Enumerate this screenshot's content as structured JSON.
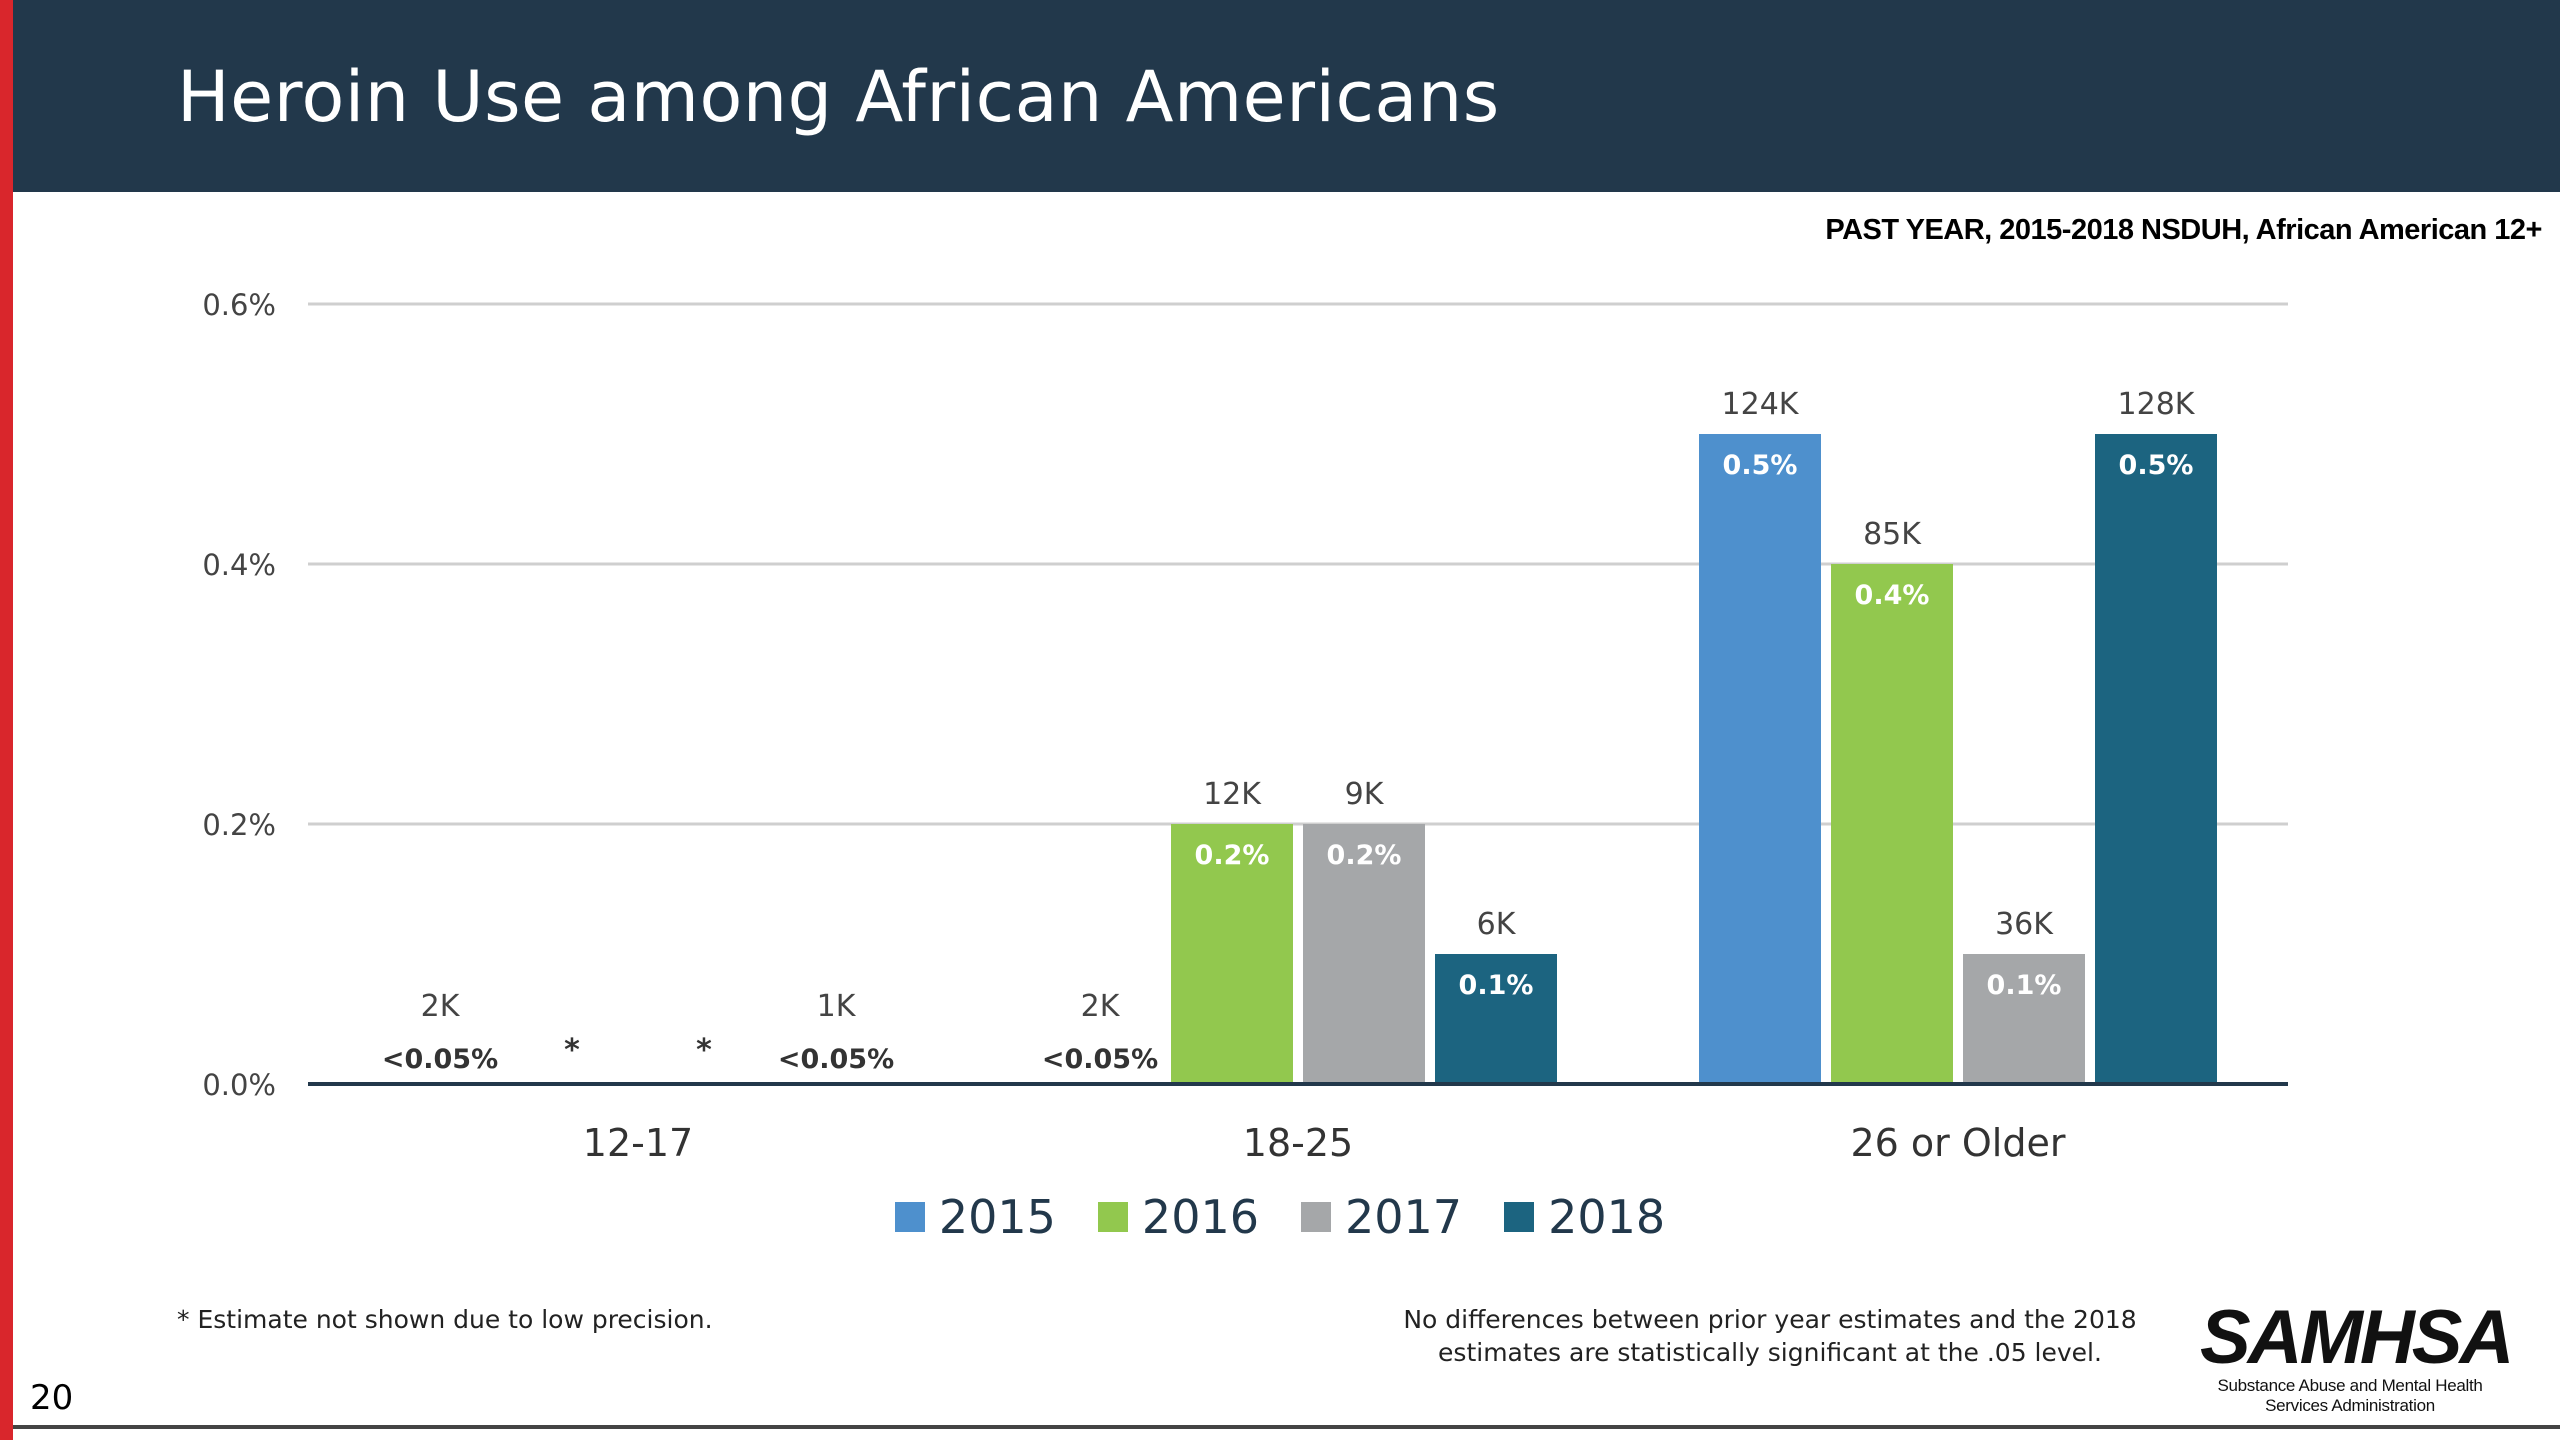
{
  "slide": {
    "title": "Heroin Use among African Americans",
    "subtitle": "PAST YEAR, 2015-2018 NSDUH, African American 12+",
    "footnote": "* Estimate not shown due to low precision.",
    "significance_line1": "No differences between prior year estimates and the 2018",
    "significance_line2": "estimates are statistically significant at the .05 level.",
    "page_number": "20",
    "logo_word": "SAMHSA",
    "logo_sub1": "Substance Abuse and Mental Health",
    "logo_sub2": "Services Administration"
  },
  "chart_data": {
    "type": "bar",
    "categories": [
      "12-17",
      "18-25",
      "26 or Older"
    ],
    "ylim": [
      0,
      0.6
    ],
    "yticks": [
      "0.0%",
      "0.2%",
      "0.4%",
      "0.6%"
    ],
    "ytick_values": [
      0,
      0.2,
      0.4,
      0.6
    ],
    "grid": true,
    "legend_position": "bottom-center",
    "series": [
      {
        "name": "2015",
        "color": "#4e90cd",
        "values": [
          0.03,
          null,
          0.5
        ],
        "inner_labels": [
          "<0.05%",
          "",
          "0.5%"
        ],
        "top_labels": [
          "2K",
          "",
          "124K"
        ],
        "suppressed": [
          false,
          false,
          false
        ]
      },
      {
        "name": "2016",
        "color": "#92c84e",
        "values": [
          null,
          0.2,
          0.4
        ],
        "inner_labels": [
          "*",
          "0.2%",
          "0.4%"
        ],
        "top_labels": [
          "",
          "12K",
          "85K"
        ],
        "suppressed": [
          true,
          false,
          false
        ]
      },
      {
        "name": "2017",
        "color": "#a5a7a9",
        "values": [
          null,
          0.2,
          0.1
        ],
        "inner_labels": [
          "*",
          "0.2%",
          "0.1%"
        ],
        "top_labels": [
          "",
          "9K",
          "36K"
        ],
        "suppressed": [
          true,
          false,
          false
        ]
      },
      {
        "name": "2018",
        "color": "#1c6480",
        "values": [
          0.02,
          0.1,
          0.5
        ],
        "inner_labels": [
          "<0.05%",
          "0.1%",
          "0.5%"
        ],
        "top_labels": [
          "1K",
          "6K",
          "128K"
        ],
        "suppressed": [
          false,
          false,
          false
        ]
      }
    ],
    "extra_labels": [
      {
        "category": "18-25",
        "series": "2015",
        "top": "2K",
        "inner": "<0.05%"
      }
    ]
  }
}
